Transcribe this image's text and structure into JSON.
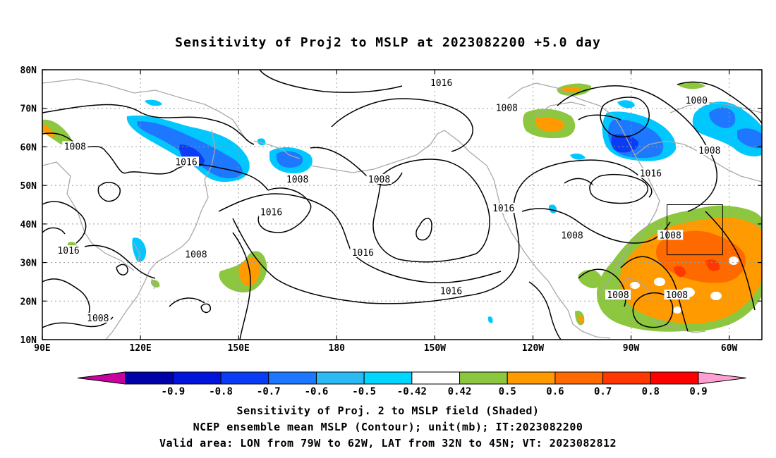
{
  "title": "Sensitivity of Proj2 to MSLP at 2023082200 +5.0 day",
  "captions": {
    "line1": "Sensitivity of Proj. 2 to MSLP field (Shaded)",
    "line2": "NCEP ensemble mean MSLP (Contour); unit(mb); IT:2023082200",
    "line3": "Valid area: LON from 79W to 62W, LAT from 32N to 45N; VT: 2023082812"
  },
  "map": {
    "lat_labels": [
      "80N",
      "70N",
      "60N",
      "50N",
      "40N",
      "30N",
      "20N",
      "10N"
    ],
    "lon_labels": [
      "90E",
      "120E",
      "150E",
      "180",
      "150W",
      "120W",
      "90W",
      "60W"
    ],
    "lat_range": [
      10,
      80
    ],
    "lon_range_east": [
      90,
      310
    ],
    "grid": "dotted",
    "valid_area": {
      "lon": [
        -79,
        -62
      ],
      "lat": [
        32,
        45
      ]
    },
    "contour_labels": [
      {
        "text": "1016",
        "lon": 212,
        "lat": 76.5
      },
      {
        "text": "1008",
        "lon": 232,
        "lat": 70
      },
      {
        "text": "1000",
        "lon": 290,
        "lat": 72
      },
      {
        "text": "1008",
        "lon": 100,
        "lat": 60
      },
      {
        "text": "1016",
        "lon": 134,
        "lat": 56
      },
      {
        "text": "1008",
        "lon": 168,
        "lat": 51.5
      },
      {
        "text": "1008",
        "lon": 193,
        "lat": 51.5
      },
      {
        "text": "1008",
        "lon": 294,
        "lat": 59
      },
      {
        "text": "1016",
        "lon": 276,
        "lat": 53
      },
      {
        "text": "1016",
        "lon": 160,
        "lat": 43
      },
      {
        "text": "1016",
        "lon": 231,
        "lat": 44
      },
      {
        "text": "1016",
        "lon": 188,
        "lat": 32.5
      },
      {
        "text": "1016",
        "lon": 98,
        "lat": 33
      },
      {
        "text": "1008",
        "lon": 137,
        "lat": 32
      },
      {
        "text": "1008",
        "lon": 252,
        "lat": 37
      },
      {
        "text": "1008",
        "lon": 282,
        "lat": 37
      },
      {
        "text": "1016",
        "lon": 215,
        "lat": 22.5
      },
      {
        "text": "1008",
        "lon": 107,
        "lat": 15.5
      },
      {
        "text": "1008",
        "lon": 266,
        "lat": 21.5
      },
      {
        "text": "1008",
        "lon": 284,
        "lat": 21.5
      }
    ]
  },
  "colorbar": {
    "labels": [
      "-0.9",
      "-0.8",
      "-0.7",
      "-0.6",
      "-0.5",
      "-0.42",
      "0.42",
      "0.5",
      "0.6",
      "0.7",
      "0.8",
      "0.9"
    ],
    "colors": [
      "#c8009e",
      "#0000a8",
      "#0014dc",
      "#0a3cf5",
      "#1e78ff",
      "#2cbaf5",
      "#00d6ff",
      "#ffffff",
      "#8dc63f",
      "#ff9a00",
      "#ff6a00",
      "#ff3800",
      "#ff0000",
      "#ffa0d2"
    ]
  },
  "shading_colors": {
    "blue_strong": "#0a3cf5",
    "blue": "#1e78ff",
    "cyan": "#00c8ff",
    "green": "#8dc63f",
    "orange": "#ff9a00",
    "dark_orange": "#ff6a00",
    "red": "#ff3800"
  }
}
